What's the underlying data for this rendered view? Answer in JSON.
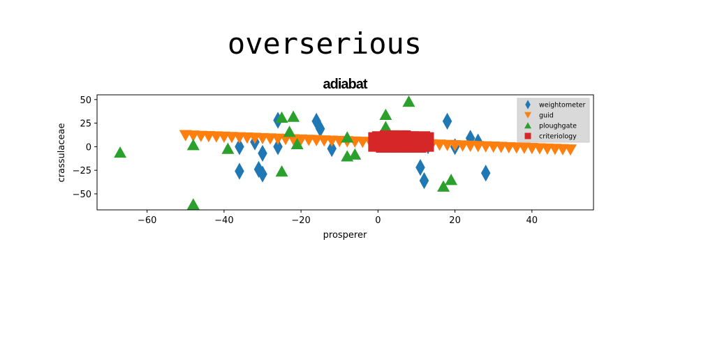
{
  "figure": {
    "supertitle": "overserious"
  },
  "chart_data": {
    "type": "scatter",
    "title": "adiabat",
    "xlabel": "prosperer",
    "ylabel": "crassulaceae",
    "xlim": [
      -73,
      56
    ],
    "ylim": [
      -67,
      55
    ],
    "xticks": [
      -60,
      -40,
      -20,
      0,
      20,
      40
    ],
    "yticks": [
      -50,
      -25,
      0,
      25,
      50
    ],
    "xtick_labels": [
      "−60",
      "−40",
      "−20",
      "0",
      "20",
      "40"
    ],
    "ytick_labels": [
      "−50",
      "−25",
      "0",
      "25",
      "50"
    ],
    "grid": false,
    "legend_position": "top-right",
    "series": [
      {
        "name": "weightometer",
        "marker": "diamond",
        "color": "#1f77b4",
        "points": [
          [
            -36,
            -26
          ],
          [
            -36,
            0
          ],
          [
            -32,
            5
          ],
          [
            -31,
            -24
          ],
          [
            -30,
            -29
          ],
          [
            -30,
            -7
          ],
          [
            -26,
            28
          ],
          [
            -26,
            0
          ],
          [
            -16,
            27
          ],
          [
            -15,
            19
          ],
          [
            -12,
            -2
          ],
          [
            11,
            -22
          ],
          [
            12,
            -36
          ],
          [
            13,
            1
          ],
          [
            18,
            27
          ],
          [
            20,
            0
          ],
          [
            24,
            9
          ],
          [
            26,
            5
          ],
          [
            28,
            -28
          ]
        ]
      },
      {
        "name": "guid",
        "marker": "triangle-down",
        "color": "#ff7f0e",
        "points": [
          [
            -50,
            12
          ],
          [
            -48,
            11.5
          ],
          [
            -46,
            11.2
          ],
          [
            -44,
            10.9
          ],
          [
            -42,
            10.6
          ],
          [
            -40,
            10.3
          ],
          [
            -38,
            10
          ],
          [
            -36,
            9.7
          ],
          [
            -34,
            9.4
          ],
          [
            -32,
            9.1
          ],
          [
            -30,
            8.8
          ],
          [
            -28,
            8.5
          ],
          [
            -26,
            8.2
          ],
          [
            -24,
            7.9
          ],
          [
            -22,
            7.6
          ],
          [
            -20,
            7.3
          ],
          [
            -18,
            7
          ],
          [
            -16,
            6.7
          ],
          [
            -14,
            6.4
          ],
          [
            -12,
            6.1
          ],
          [
            -10,
            5.8
          ],
          [
            -8,
            5.5
          ],
          [
            -6,
            5.2
          ],
          [
            -4,
            4.9
          ],
          [
            -2,
            4.6
          ],
          [
            0,
            4.3
          ],
          [
            2,
            4
          ],
          [
            4,
            3.7
          ],
          [
            6,
            3.4
          ],
          [
            8,
            3.1
          ],
          [
            10,
            2.8
          ],
          [
            12,
            2.5
          ],
          [
            14,
            2.2
          ],
          [
            16,
            1.9
          ],
          [
            18,
            1.6
          ],
          [
            20,
            1.3
          ],
          [
            22,
            1
          ],
          [
            24,
            0.7
          ],
          [
            26,
            0.4
          ],
          [
            28,
            0.1
          ],
          [
            30,
            -0.2
          ],
          [
            32,
            -0.5
          ],
          [
            34,
            -0.8
          ],
          [
            36,
            -1.1
          ],
          [
            38,
            -1.4
          ],
          [
            40,
            -1.7
          ],
          [
            42,
            -2
          ],
          [
            44,
            -2.3
          ],
          [
            46,
            -2.6
          ],
          [
            48,
            -2.9
          ],
          [
            50,
            -3.2
          ]
        ]
      },
      {
        "name": "ploughgate",
        "marker": "triangle-up",
        "color": "#2ca02c",
        "points": [
          [
            -67,
            -6
          ],
          [
            -48,
            2
          ],
          [
            -48,
            -61
          ],
          [
            -39,
            -2
          ],
          [
            -25,
            31
          ],
          [
            -25,
            -26
          ],
          [
            -23,
            16
          ],
          [
            -22,
            32
          ],
          [
            -21,
            3
          ],
          [
            -8,
            10
          ],
          [
            -8,
            -10
          ],
          [
            -6,
            -8
          ],
          [
            2,
            34
          ],
          [
            2,
            21
          ],
          [
            8,
            48
          ],
          [
            17,
            -42
          ],
          [
            19,
            -35
          ]
        ]
      },
      {
        "name": "criteriology",
        "marker": "square",
        "color": "#d62728",
        "points": [
          [
            0,
            5
          ],
          [
            1,
            6
          ],
          [
            2,
            4
          ],
          [
            3,
            7
          ],
          [
            4,
            5
          ],
          [
            5,
            6
          ],
          [
            6,
            4
          ],
          [
            6,
            7
          ],
          [
            7,
            5
          ],
          [
            8,
            6
          ],
          [
            9,
            5
          ],
          [
            10,
            4
          ],
          [
            11,
            6
          ],
          [
            12,
            5
          ]
        ]
      }
    ]
  }
}
